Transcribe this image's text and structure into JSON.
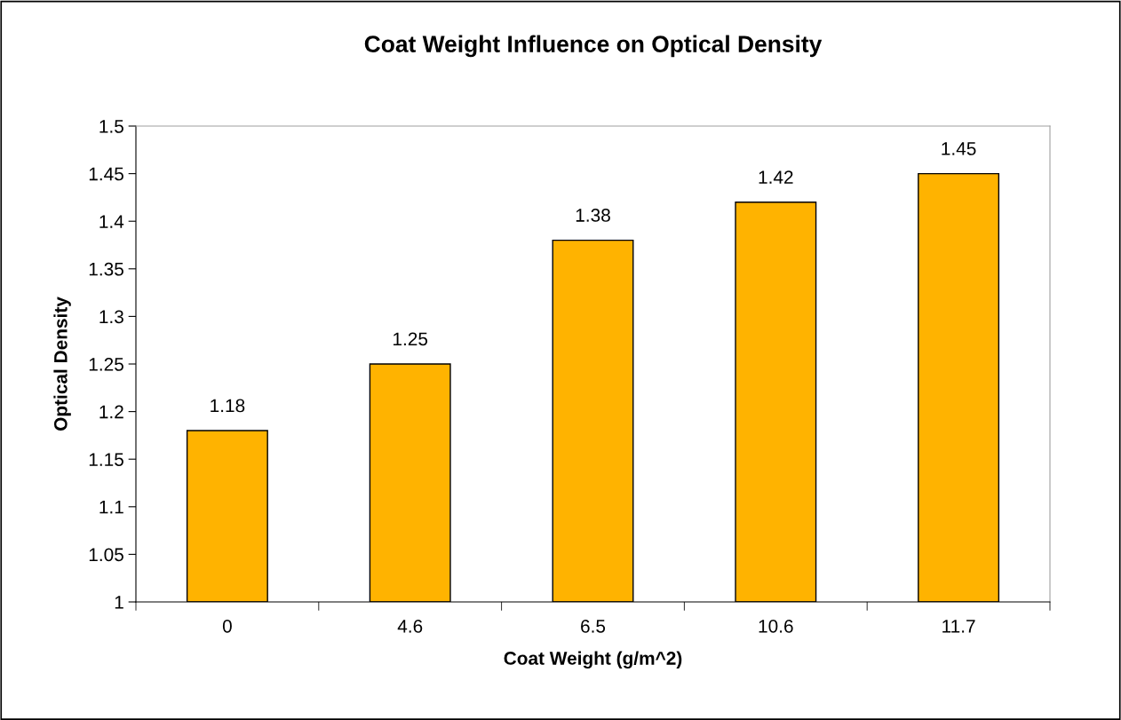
{
  "chart_data": {
    "type": "bar",
    "title": "Coat Weight Influence on Optical Density",
    "xlabel": "Coat Weight (g/m^2)",
    "ylabel": "Optical Density",
    "categories": [
      "0",
      "4.6",
      "6.5",
      "10.6",
      "11.7"
    ],
    "values": [
      1.18,
      1.25,
      1.38,
      1.42,
      1.45
    ],
    "color": "#ffb300",
    "ylim": [
      1,
      1.5
    ],
    "yticks": [
      1,
      1.05,
      1.1,
      1.15,
      1.2,
      1.25,
      1.3,
      1.35,
      1.4,
      1.45,
      1.5
    ],
    "data_labels": true,
    "grid": false,
    "legend": false
  }
}
